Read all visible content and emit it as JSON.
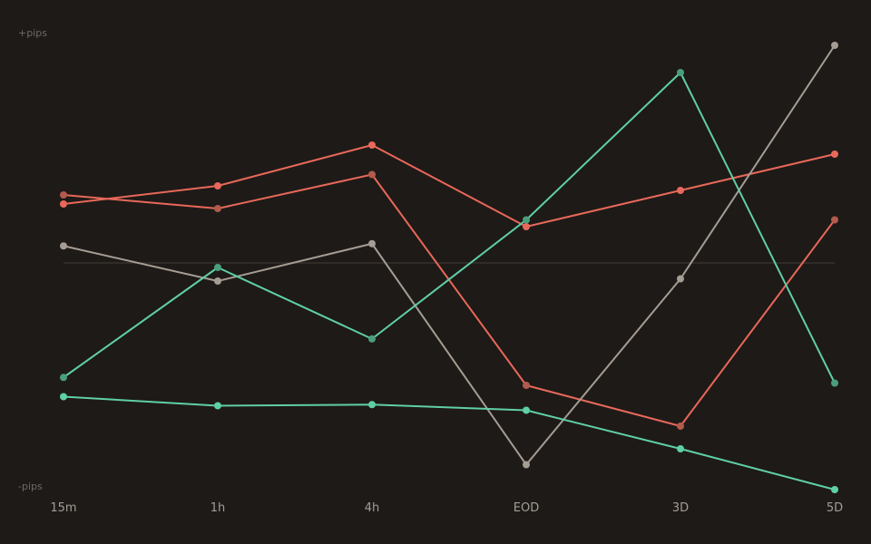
{
  "chart_data": {
    "type": "line",
    "title": "",
    "xlabel": "",
    "ylabel": "",
    "y_top_label": "+pips",
    "y_bottom_label": "-pips",
    "categories": [
      "15m",
      "1h",
      "4h",
      "EOD",
      "3D",
      "5D"
    ],
    "ylim": [
      -100,
      100
    ],
    "baseline": 0,
    "grid": false,
    "legend": "none",
    "series": [
      {
        "color": "#e8685a",
        "marker": "#e8685a",
        "values": [
          26,
          34,
          52,
          16,
          32,
          48
        ]
      },
      {
        "color": "#e8685a",
        "marker": "#b25a4c",
        "values": [
          30,
          24,
          39,
          -54,
          -72,
          19
        ]
      },
      {
        "color": "#a59c93",
        "marker": "#a59c93",
        "values": [
          7.5,
          -8,
          8.5,
          -89,
          -7,
          96
        ]
      },
      {
        "color": "#5fcfa6",
        "marker": "#4a9e7e",
        "values": [
          -50.5,
          -2,
          -33.5,
          19,
          84,
          -53
        ]
      },
      {
        "color": "#5fcfa6",
        "marker": "#5fcfa6",
        "values": [
          -59,
          -63,
          -62.5,
          -65,
          -82,
          -100
        ]
      }
    ]
  }
}
